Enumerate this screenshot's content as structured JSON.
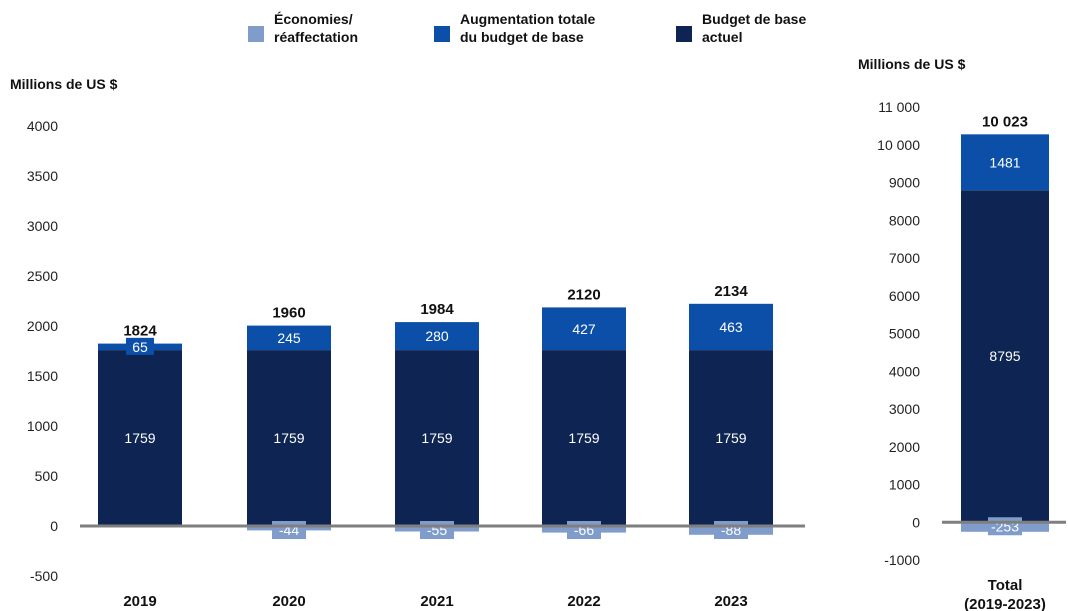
{
  "legend": [
    {
      "label": "Économies/\nréaffectation",
      "color": "#7f9ccb"
    },
    {
      "label": "Augmentation totale\ndu budget de base",
      "color": "#0b4fa8"
    },
    {
      "label": "Budget de base\nactuel",
      "color": "#0e2452"
    }
  ],
  "colors": {
    "base": "#0e2452",
    "increase": "#0b4fa8",
    "savings": "#7f9ccb",
    "axis": "#7f7f7f"
  },
  "chart_data": [
    {
      "type": "bar",
      "stacked": true,
      "ylabel": "Millions de US $",
      "ylim": [
        -500,
        4000
      ],
      "yticks": [
        "4000",
        "3500",
        "3000",
        "2500",
        "2000",
        "1500",
        "1000",
        "500",
        "0",
        "-500"
      ],
      "yticks_values": [
        4000,
        3500,
        3000,
        2500,
        2000,
        1500,
        1000,
        500,
        0,
        -500
      ],
      "categories": [
        "2019",
        "2020",
        "2021",
        "2022",
        "2023"
      ],
      "series": [
        {
          "name": "Budget de base actuel",
          "values": [
            1759,
            1759,
            1759,
            1759,
            1759
          ],
          "labels": [
            "1759",
            "1759",
            "1759",
            "1759",
            "1759"
          ]
        },
        {
          "name": "Augmentation totale du budget de base",
          "values": [
            65,
            245,
            280,
            427,
            463
          ],
          "labels": [
            "65",
            "245",
            "280",
            "427",
            "463"
          ]
        },
        {
          "name": "Économies/ réaffectation",
          "values": [
            0,
            -44,
            -55,
            -66,
            -88
          ],
          "labels": [
            "",
            "-44",
            "-55",
            "-66",
            "-88"
          ]
        }
      ],
      "totals": [
        "1824",
        "1960",
        "1984",
        "2120",
        "2134"
      ]
    },
    {
      "type": "bar",
      "stacked": true,
      "ylabel": "Millions de US $",
      "ylim": [
        -1000,
        11000
      ],
      "yticks": [
        "11 000",
        "10 000",
        "9000",
        "8000",
        "7000",
        "6000",
        "5000",
        "4000",
        "3000",
        "2000",
        "1000",
        "0",
        "-1000"
      ],
      "yticks_values": [
        11000,
        10000,
        9000,
        8000,
        7000,
        6000,
        5000,
        4000,
        3000,
        2000,
        1000,
        0,
        -1000
      ],
      "categories": [
        "Total\n(2019-2023)"
      ],
      "series": [
        {
          "name": "Budget de base actuel",
          "values": [
            8795
          ],
          "labels": [
            "8795"
          ]
        },
        {
          "name": "Augmentation totale du budget de base",
          "values": [
            1481
          ],
          "labels": [
            "1481"
          ]
        },
        {
          "name": "Économies/ réaffectation",
          "values": [
            -253
          ],
          "labels": [
            "-253"
          ]
        }
      ],
      "totals": [
        "10 023"
      ]
    }
  ]
}
